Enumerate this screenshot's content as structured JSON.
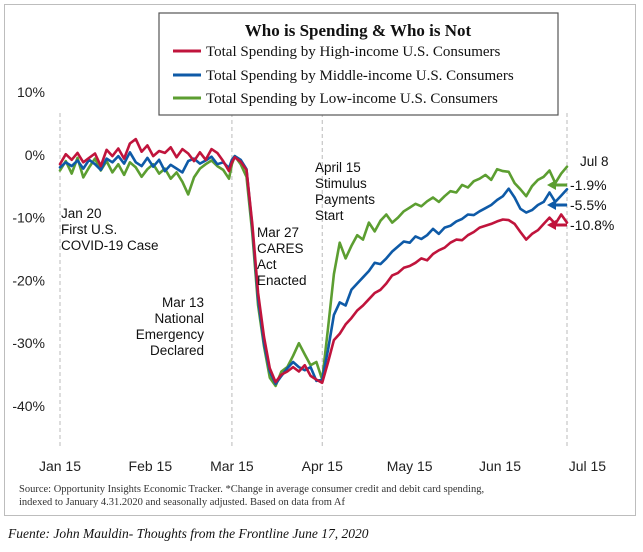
{
  "chart_data": {
    "type": "line",
    "title": "Who is Spending & Who is Not",
    "x_ticks": [
      "Jan 15",
      "Feb 15",
      "Mar 15",
      "Apr 15",
      "May 15",
      "Jun 15",
      "Jul 15"
    ],
    "y_ticks": [
      "10%",
      "0%",
      "-10%",
      "-20%",
      "-30%",
      "-40%"
    ],
    "ylim": [
      -45,
      10
    ],
    "y_unit": "%",
    "series": [
      {
        "name": "Total Spending by High-income U.S. Consumers",
        "color": "#c0143c",
        "end_label": "-10.8%",
        "x": [
          0,
          2,
          4,
          6,
          8,
          10,
          12,
          14,
          16,
          18,
          20,
          22,
          24,
          26,
          28,
          30,
          32,
          34,
          36,
          38,
          40,
          42,
          44,
          46,
          48,
          50,
          52,
          54,
          56,
          58,
          59,
          60,
          62,
          64,
          66,
          68,
          70,
          72,
          74,
          76,
          78,
          80,
          82,
          84,
          86,
          88,
          90,
          92,
          94,
          96,
          98,
          100,
          102,
          104,
          106,
          108,
          110,
          112,
          114,
          116,
          118,
          120,
          122,
          124,
          126,
          128,
          130,
          132,
          134,
          136,
          138,
          140,
          142,
          144,
          146,
          148,
          150,
          152,
          154,
          156,
          158,
          160,
          162,
          164,
          166,
          168,
          170,
          172,
          174
        ],
        "values": [
          -1.5,
          0.1,
          -0.8,
          0.3,
          -1.2,
          -0.5,
          0.2,
          -1.8,
          0.8,
          -0.2,
          1.0,
          -0.6,
          1.8,
          2.5,
          0.5,
          1.5,
          -0.2,
          0.6,
          0.3,
          1.2,
          -0.4,
          0.9,
          0.2,
          -1.0,
          0.4,
          -0.8,
          0.9,
          0.3,
          -1.0,
          -2.6,
          -1.2,
          -0.4,
          -1.1,
          -2.4,
          -11.0,
          -22.0,
          -29.0,
          -34.0,
          -36.2,
          -35.0,
          -34.5,
          -33.8,
          -34.5,
          -33.5,
          -35.2,
          -35.8,
          -36.3,
          -33.0,
          -29.5,
          -28.5,
          -27.0,
          -26.0,
          -24.8,
          -24.0,
          -23.0,
          -22.0,
          -21.5,
          -20.5,
          -19.2,
          -18.8,
          -18.0,
          -17.7,
          -17.2,
          -16.5,
          -16.8,
          -15.8,
          -15.2,
          -14.8,
          -14.0,
          -13.5,
          -13.6,
          -12.8,
          -12.3,
          -11.6,
          -11.3,
          -11.0,
          -10.6,
          -10.3,
          -10.4,
          -11.0,
          -12.3,
          -13.5,
          -12.6,
          -12.0,
          -11.0,
          -10.0,
          -11.0,
          -9.5,
          -10.8
        ]
      },
      {
        "name": "Total Spending by Middle-income U.S. Consumers",
        "color": "#0e5aa7",
        "end_label": "-5.5%",
        "x": [
          0,
          2,
          4,
          6,
          8,
          10,
          12,
          14,
          16,
          18,
          20,
          22,
          24,
          26,
          28,
          30,
          32,
          34,
          36,
          38,
          40,
          42,
          44,
          46,
          48,
          50,
          52,
          54,
          56,
          58,
          59,
          60,
          62,
          64,
          66,
          68,
          70,
          72,
          74,
          76,
          78,
          80,
          82,
          84,
          86,
          88,
          90,
          92,
          94,
          96,
          98,
          100,
          102,
          104,
          106,
          108,
          110,
          112,
          114,
          116,
          118,
          120,
          122,
          124,
          126,
          128,
          130,
          132,
          134,
          136,
          138,
          140,
          142,
          144,
          146,
          148,
          150,
          152,
          154,
          156,
          158,
          160,
          162,
          164,
          166,
          168,
          170,
          172,
          174
        ],
        "values": [
          -2.0,
          -1.2,
          -1.8,
          -0.9,
          -2.2,
          -0.8,
          -1.5,
          -2.4,
          -0.6,
          -1.2,
          -0.2,
          -1.4,
          0.4,
          -1.2,
          -1.8,
          -0.5,
          -1.9,
          -0.8,
          -2.6,
          -1.6,
          -2.2,
          -2.8,
          -1.0,
          -0.6,
          -1.4,
          -0.9,
          -0.3,
          -1.5,
          -1.2,
          -2.1,
          -0.8,
          -0.2,
          -0.8,
          -2.3,
          -11.5,
          -23.0,
          -30.0,
          -34.5,
          -36.5,
          -35.2,
          -34.0,
          -33.0,
          -33.8,
          -34.3,
          -33.8,
          -36.0,
          -35.8,
          -31.0,
          -25.5,
          -23.5,
          -24.0,
          -21.5,
          -20.5,
          -19.5,
          -18.5,
          -17.2,
          -17.4,
          -16.5,
          -15.4,
          -14.6,
          -13.8,
          -14.0,
          -13.0,
          -13.4,
          -12.8,
          -11.8,
          -12.6,
          -11.6,
          -11.3,
          -10.6,
          -10.2,
          -9.5,
          -9.6,
          -9.0,
          -8.5,
          -8.0,
          -7.2,
          -6.6,
          -5.4,
          -6.8,
          -8.6,
          -9.2,
          -8.8,
          -8.0,
          -7.5,
          -6.0,
          -7.5,
          -6.5,
          -5.5
        ]
      },
      {
        "name": "Total Spending by Low-income U.S. Consumers",
        "color": "#5c9e31",
        "end_label": "-1.9%",
        "x": [
          0,
          2,
          4,
          6,
          8,
          10,
          12,
          14,
          16,
          18,
          20,
          22,
          24,
          26,
          28,
          30,
          32,
          34,
          36,
          38,
          40,
          42,
          44,
          46,
          48,
          50,
          52,
          54,
          56,
          58,
          59,
          60,
          62,
          64,
          66,
          68,
          70,
          72,
          74,
          76,
          78,
          80,
          82,
          84,
          86,
          88,
          90,
          92,
          94,
          96,
          98,
          100,
          102,
          104,
          106,
          108,
          110,
          112,
          114,
          116,
          118,
          120,
          122,
          124,
          126,
          128,
          130,
          132,
          134,
          136,
          138,
          140,
          142,
          144,
          146,
          148,
          150,
          152,
          154,
          156,
          158,
          160,
          162,
          164,
          166,
          168,
          170,
          172,
          174
        ],
        "values": [
          -2.5,
          -1.0,
          -3.0,
          -0.5,
          -3.6,
          -2.0,
          -0.6,
          -2.5,
          -1.0,
          -2.8,
          -1.5,
          -3.2,
          -1.2,
          -2.0,
          -3.5,
          -2.3,
          -1.5,
          -3.0,
          -2.2,
          -3.8,
          -2.8,
          -4.3,
          -6.3,
          -3.6,
          -2.2,
          -1.5,
          -0.9,
          -1.8,
          -2.4,
          -3.8,
          -1.5,
          -0.2,
          -1.5,
          -3.5,
          -12.5,
          -24.0,
          -30.5,
          -35.5,
          -36.8,
          -34.5,
          -33.8,
          -32.0,
          -30.0,
          -31.8,
          -33.5,
          -33.0,
          -35.8,
          -27.5,
          -19.0,
          -14.0,
          -16.5,
          -14.5,
          -12.8,
          -13.5,
          -10.8,
          -12.2,
          -10.5,
          -9.5,
          -10.8,
          -10.0,
          -9.0,
          -8.4,
          -7.8,
          -8.2,
          -7.4,
          -6.8,
          -7.5,
          -6.6,
          -5.8,
          -6.0,
          -4.8,
          -5.2,
          -4.2,
          -3.8,
          -3.2,
          -4.0,
          -2.3,
          -2.6,
          -2.7,
          -4.5,
          -5.5,
          -6.6,
          -5.0,
          -4.0,
          -3.5,
          -2.5,
          -4.5,
          -3.0,
          -1.9
        ]
      }
    ],
    "annotations": [
      {
        "lines": [
          "Jan 20",
          "First U.S.",
          "COVID-19 Case"
        ]
      },
      {
        "lines": [
          "Mar 13",
          "National",
          "Emergency",
          "Declared"
        ]
      },
      {
        "lines": [
          "Mar 27",
          "CARES",
          "Act",
          "Enacted"
        ]
      },
      {
        "lines": [
          "April 15",
          "Stimulus",
          "Payments",
          "Start"
        ]
      },
      {
        "lines": [
          "Jul 8"
        ]
      }
    ],
    "source_note": [
      "Source: Opportunity Insights Economic Tracker. *Change in average consumer credit and debit card spending,",
      "indexed to January 4.31.2020 and seasonally adjusted. Based on data from Af"
    ]
  },
  "caption": "Fuente: John Mauldin- Thoughts from the Frontline June 17, 2020"
}
